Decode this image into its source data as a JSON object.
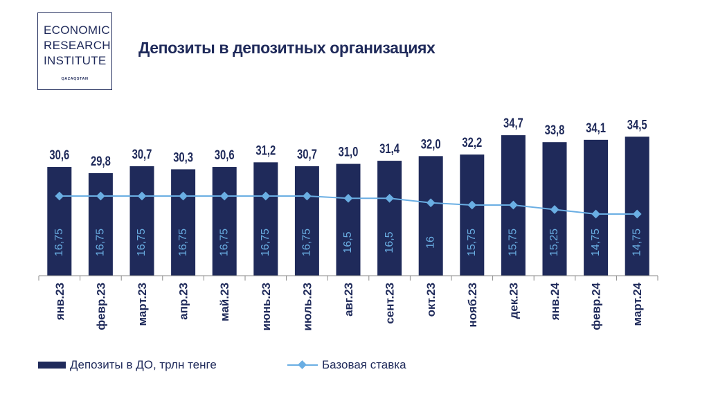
{
  "logo": {
    "lines": [
      "ECONOMIC",
      "RESEARCH",
      "INSTITUTE"
    ],
    "subtitle": "QAZAQSTAN"
  },
  "title": "Депозиты в депозитных организациях",
  "colors": {
    "bar": "#1f2a5a",
    "line": "#6aaee3",
    "text": "#1f2a5a"
  },
  "chart_data": {
    "type": "bar",
    "categories": [
      "янв.23",
      "февр.23",
      "март.23",
      "апр.23",
      "май.23",
      "июнь.23",
      "июль.23",
      "авг.23",
      "сент.23",
      "окт.23",
      "нояб.23",
      "дек.23",
      "янв.24",
      "февр.24",
      "март.24"
    ],
    "series": [
      {
        "name": "Депозиты в ДО, трлн тенге",
        "type": "bar",
        "values": [
          30.6,
          29.8,
          30.7,
          30.3,
          30.6,
          31.2,
          30.7,
          31.0,
          31.4,
          32.0,
          32.2,
          34.7,
          33.8,
          34.1,
          34.5
        ],
        "labels": [
          "30,6",
          "29,8",
          "30,7",
          "30,3",
          "30,6",
          "31,2",
          "30,7",
          "31,0",
          "31,4",
          "32,0",
          "32,2",
          "34,7",
          "33,8",
          "34,1",
          "34,5"
        ]
      },
      {
        "name": "Базовая ставка",
        "type": "line",
        "values": [
          16.75,
          16.75,
          16.75,
          16.75,
          16.75,
          16.75,
          16.75,
          16.5,
          16.5,
          16,
          15.75,
          15.75,
          15.25,
          14.75,
          14.75
        ],
        "labels": [
          "16,75",
          "16,75",
          "16,75",
          "16,75",
          "16,75",
          "16,75",
          "16,75",
          "16,5",
          "16,5",
          "16",
          "15,75",
          "15,75",
          "15,25",
          "14,75",
          "14,75"
        ]
      }
    ],
    "legend_position": "bottom",
    "grid": false
  }
}
